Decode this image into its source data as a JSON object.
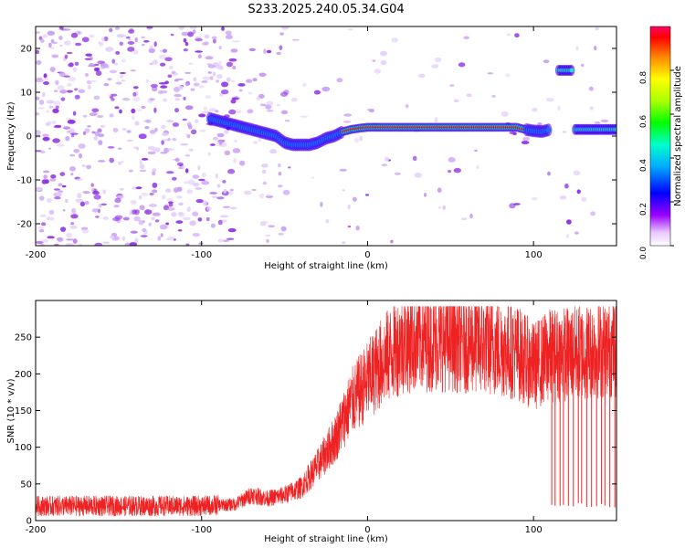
{
  "title": "S233.2025.240.05.34.G04",
  "chart_data": [
    {
      "type": "heatmap",
      "name": "spectrogram",
      "xlabel": "Height of straight line (km)",
      "ylabel": "Frequency (Hz)",
      "xlim": [
        -200,
        150
      ],
      "ylim": [
        -25,
        25
      ],
      "xticks": [
        -200,
        -100,
        0,
        100
      ],
      "yticks": [
        -20,
        -10,
        0,
        10,
        20
      ],
      "ridge": {
        "x": [
          -95,
          -85,
          -75,
          -65,
          -55,
          -50,
          -45,
          -40,
          -35,
          -30,
          -25,
          -20,
          -15,
          -10,
          -5,
          0,
          10,
          20,
          40,
          60,
          80,
          90,
          95,
          100,
          105,
          110
        ],
        "freq": [
          4,
          3,
          2,
          1,
          0,
          -1.5,
          -2,
          -2,
          -2,
          -1.5,
          -0.5,
          0,
          1,
          1.5,
          1.8,
          2,
          2,
          2,
          2,
          2,
          2,
          2,
          1.5,
          1.2,
          1,
          1.5
        ]
      },
      "side_band": {
        "x_range": [
          115,
          123
        ],
        "freq": 15
      },
      "tail_band": {
        "x_range": [
          125,
          150
        ],
        "freq": 1.5
      },
      "colorbar": {
        "label": "Normalized spectral amplitude",
        "ticks": [
          "0.0",
          "0.2",
          "0.4",
          "0.6",
          "0.8"
        ],
        "range": [
          0,
          1
        ]
      }
    },
    {
      "type": "line",
      "name": "snr",
      "xlabel": "Height of straight line (km)",
      "ylabel": "SNR (10 * v/v)",
      "xlim": [
        -200,
        150
      ],
      "ylim": [
        0,
        300
      ],
      "xticks": [
        -200,
        -100,
        0,
        100
      ],
      "yticks": [
        0,
        50,
        100,
        150,
        200,
        250
      ],
      "color": "#ee2222",
      "trend": {
        "x": [
          -200,
          -150,
          -100,
          -80,
          -70,
          -60,
          -50,
          -40,
          -30,
          -20,
          -10,
          0,
          10,
          20,
          30,
          50,
          70,
          90,
          100,
          110,
          130,
          150
        ],
        "y": [
          20,
          20,
          20,
          22,
          35,
          30,
          35,
          45,
          75,
          110,
          160,
          190,
          220,
          240,
          245,
          245,
          240,
          230,
          210,
          225,
          230,
          235
        ]
      },
      "dropouts": [
        111,
        113,
        116,
        118,
        121,
        124,
        127,
        129,
        132,
        135,
        138,
        141,
        143,
        146,
        149
      ]
    }
  ]
}
